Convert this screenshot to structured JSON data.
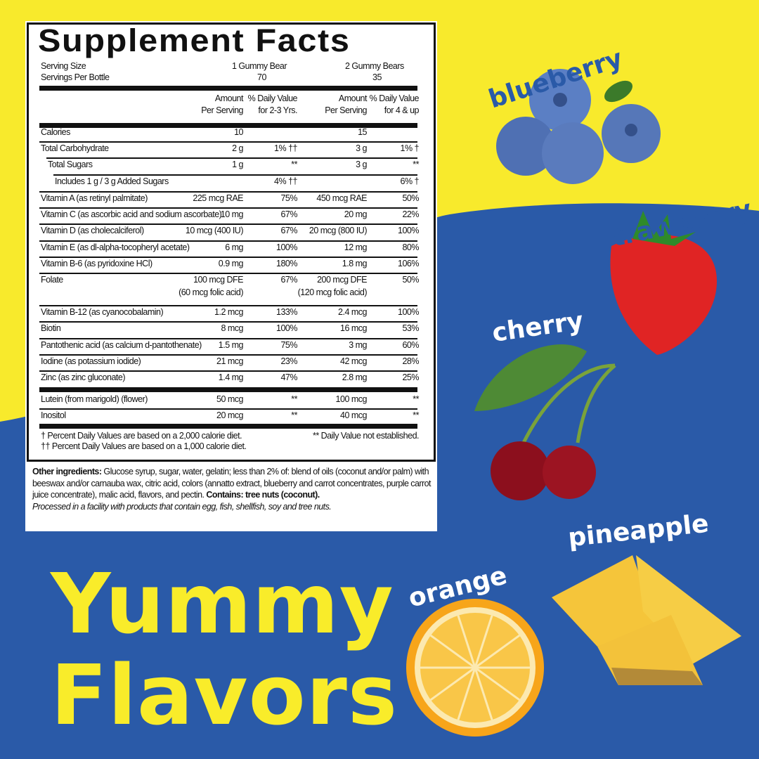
{
  "colors": {
    "yellow": "#f8ea2c",
    "blue": "#2a5aa8",
    "label_text": "#111111"
  },
  "label": {
    "title": "Supplement Facts",
    "serving_size_label": "Serving Size",
    "servings_per_label": "Servings Per Bottle",
    "serving_size_1": "1 Gummy Bear",
    "servings_1": "70",
    "serving_size_2": "2 Gummy Bears",
    "servings_2": "35",
    "col_amount_1": "Amount",
    "col_amount_2": "Per Serving",
    "col_dv1_1": "% Daily Value",
    "col_dv1_2": "for 2-3 Yrs.",
    "col_dv2_1": "% Daily Value",
    "col_dv2_2": "for 4 & up",
    "rows": [
      {
        "name": "Calories",
        "a1": "10",
        "d1": "",
        "a2": "15",
        "d2": ""
      },
      {
        "name": "Total Carbohydrate",
        "a1": "2 g",
        "d1": "1% ††",
        "a2": "3 g",
        "d2": "1% †"
      },
      {
        "name": "Total Sugars",
        "a1": "1 g",
        "d1": "**",
        "a2": "3 g",
        "d2": "**"
      },
      {
        "name": "Includes 1 g / 3 g Added Sugars",
        "a1": "",
        "d1": "4% ††",
        "a2": "",
        "d2": "6% †"
      },
      {
        "name": "Vitamin A (as retinyl palmitate)",
        "a1": "225 mcg RAE",
        "d1": "75%",
        "a2": "450 mcg RAE",
        "d2": "50%"
      },
      {
        "name": "Vitamin C (as ascorbic acid and sodium ascorbate)",
        "a1": "10 mg",
        "d1": "67%",
        "a2": "20 mg",
        "d2": "22%"
      },
      {
        "name": "Vitamin D (as cholecalciferol)",
        "a1": "10 mcg (400 IU)",
        "d1": "67%",
        "a2": "20 mcg (800 IU)",
        "d2": "100%"
      },
      {
        "name": "Vitamin E (as dl-alpha-tocopheryl acetate)",
        "a1": "6 mg",
        "d1": "100%",
        "a2": "12 mg",
        "d2": "80%"
      },
      {
        "name": "Vitamin B-6 (as pyridoxine HCl)",
        "a1": "0.9 mg",
        "d1": "180%",
        "a2": "1.8 mg",
        "d2": "106%"
      },
      {
        "name": "Folate",
        "a1": "100 mcg DFE",
        "a1b": "(60 mcg folic acid)",
        "d1": "67%",
        "a2": "200 mcg DFE",
        "a2b": "(120 mcg folic acid)",
        "d2": "50%"
      },
      {
        "name": "Vitamin B-12 (as cyanocobalamin)",
        "a1": "1.2 mcg",
        "d1": "133%",
        "a2": "2.4 mcg",
        "d2": "100%"
      },
      {
        "name": "Biotin",
        "a1": "8 mcg",
        "d1": "100%",
        "a2": "16 mcg",
        "d2": "53%"
      },
      {
        "name": "Pantothenic acid (as calcium d-pantothenate)",
        "a1": "1.5 mg",
        "d1": "75%",
        "a2": "3 mg",
        "d2": "60%"
      },
      {
        "name": "Iodine (as potassium iodide)",
        "a1": "21 mcg",
        "d1": "23%",
        "a2": "42 mcg",
        "d2": "28%"
      },
      {
        "name": "Zinc (as zinc gluconate)",
        "a1": "1.4 mg",
        "d1": "47%",
        "a2": "2.8 mg",
        "d2": "25%"
      },
      {
        "name": "Lutein (from marigold) (flower)",
        "a1": "50 mcg",
        "d1": "**",
        "a2": "100 mcg",
        "d2": "**"
      },
      {
        "name": "Inositol",
        "a1": "20 mcg",
        "d1": "**",
        "a2": "40 mcg",
        "d2": "**"
      }
    ],
    "footnote_1": "† Percent Daily Values are based on a 2,000 calorie diet.",
    "footnote_2": "†† Percent Daily Values are based on a 1,000 calorie diet.",
    "footnote_3": "** Daily Value not established.",
    "other_label": "Other ingredients:",
    "other_text": "Glucose syrup, sugar, water, gelatin; less than 2% of: blend of oils (coconut and/or palm) with beeswax and/or carnauba wax, citric acid, colors (annatto extract, blueberry and carrot concentrates, purple carrot juice concentrate), malic acid, flavors, and pectin.",
    "contains_label": "Contains:",
    "contains_text": "tree nuts (coconut).",
    "facility_text": "Processed in a facility with products that contain egg, fish, shellfish, soy and tree nuts."
  },
  "headline": {
    "line1": "Yummy",
    "line2": "Flavors"
  },
  "flavors": [
    "blueberry",
    "strawberry",
    "cherry",
    "pineapple",
    "orange"
  ]
}
